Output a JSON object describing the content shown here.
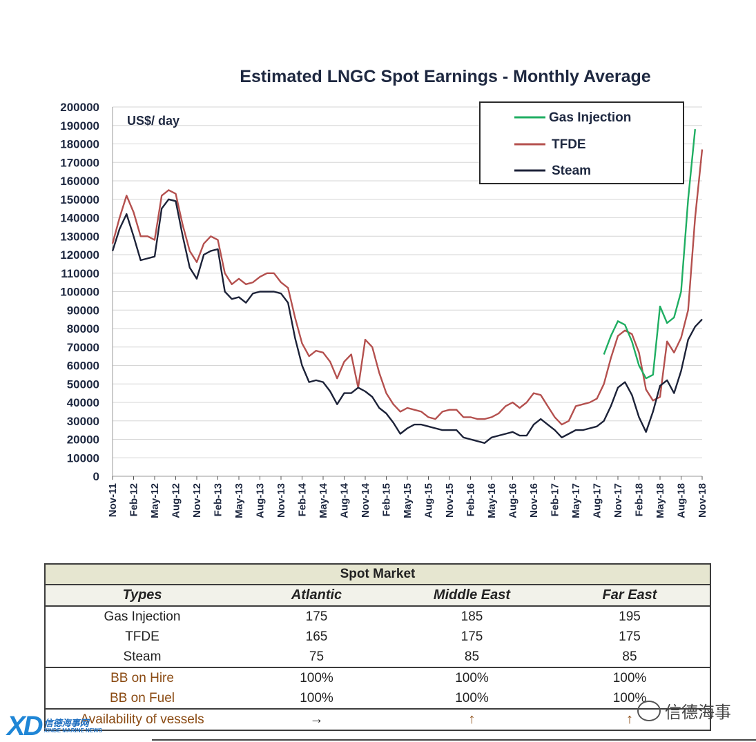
{
  "chart_data": {
    "type": "line",
    "title": "Estimated LNGC Spot Earnings - Monthly Average",
    "unit_label": "US$/ day",
    "ylim": [
      0,
      200000
    ],
    "yticks": [
      0,
      10000,
      20000,
      30000,
      40000,
      50000,
      60000,
      70000,
      80000,
      90000,
      100000,
      110000,
      120000,
      130000,
      140000,
      150000,
      160000,
      170000,
      180000,
      190000,
      200000
    ],
    "xtick_labels": [
      "Nov-11",
      "Feb-12",
      "May-12",
      "Aug-12",
      "Nov-12",
      "Feb-13",
      "May-13",
      "Aug-13",
      "Nov-13",
      "Feb-14",
      "May-14",
      "Aug-14",
      "Nov-14",
      "Feb-15",
      "May-15",
      "Aug-15",
      "Nov-15",
      "Feb-16",
      "May-16",
      "Aug-16",
      "Nov-16",
      "Feb-17",
      "May-17",
      "Aug-17",
      "Nov-17",
      "Feb-18",
      "May-18",
      "Aug-18",
      "Nov-18"
    ],
    "grid": true,
    "legend_position": "top-right",
    "series": [
      {
        "name": "Gas Injection",
        "color": "#1fae62",
        "start_index": 70,
        "values": [
          66000,
          76000,
          84000,
          82000,
          73000,
          60000,
          53000,
          55000,
          92000,
          83000,
          86000,
          100000,
          150000,
          188000
        ]
      },
      {
        "name": "TFDE",
        "color": "#b4504e",
        "start_index": 0,
        "values": [
          126000,
          140000,
          152000,
          143000,
          130000,
          130000,
          128000,
          152000,
          155000,
          153000,
          136000,
          122000,
          116000,
          126000,
          130000,
          128000,
          110000,
          104000,
          107000,
          104000,
          105000,
          108000,
          110000,
          110000,
          105000,
          102000,
          86000,
          72000,
          65000,
          68000,
          67000,
          62000,
          53000,
          62000,
          66000,
          48000,
          74000,
          70000,
          56000,
          45000,
          39000,
          35000,
          37000,
          36000,
          35000,
          32000,
          31000,
          35000,
          36000,
          36000,
          32000,
          32000,
          31000,
          31000,
          32000,
          34000,
          38000,
          40000,
          37000,
          40000,
          45000,
          44000,
          38000,
          32000,
          28000,
          30000,
          38000,
          39000,
          40000,
          42000,
          50000,
          64000,
          76000,
          79000,
          77000,
          67000,
          47000,
          41000,
          43000,
          73000,
          67000,
          75000,
          90000,
          140000,
          177000
        ]
      },
      {
        "name": "Steam",
        "color": "#1c2238",
        "start_index": 0,
        "values": [
          122000,
          134000,
          142000,
          130000,
          117000,
          118000,
          119000,
          145000,
          150000,
          149000,
          130000,
          113000,
          107000,
          120000,
          122000,
          123000,
          100000,
          96000,
          97000,
          94000,
          99000,
          100000,
          100000,
          100000,
          99000,
          94000,
          75000,
          60000,
          51000,
          52000,
          51000,
          46000,
          39000,
          45000,
          45000,
          48000,
          46000,
          43000,
          37000,
          34000,
          29000,
          23000,
          26000,
          28000,
          28000,
          27000,
          26000,
          25000,
          25000,
          25000,
          21000,
          20000,
          19000,
          18000,
          21000,
          22000,
          23000,
          24000,
          22000,
          22000,
          28000,
          31000,
          28000,
          25000,
          21000,
          23000,
          25000,
          25000,
          26000,
          27000,
          30000,
          38000,
          48000,
          51000,
          44000,
          32000,
          24000,
          35000,
          49000,
          52000,
          45000,
          57000,
          74000,
          81000,
          85000
        ]
      }
    ]
  },
  "table": {
    "banner": "Spot Market",
    "headers": [
      "Types",
      "Atlantic",
      "Middle East",
      "Far East"
    ],
    "rows": [
      [
        "Gas Injection",
        "175",
        "185",
        "195"
      ],
      [
        "TFDE",
        "165",
        "175",
        "175"
      ],
      [
        "Steam",
        "75",
        "85",
        "85"
      ],
      [
        "BB on Hire",
        "100%",
        "100%",
        "100%"
      ],
      [
        "BB on Fuel",
        "100%",
        "100%",
        "100%"
      ],
      [
        "Availability of vessels",
        "→",
        "↑",
        "↑"
      ]
    ]
  },
  "watermark": "信德海事",
  "brand": {
    "mark": "XD",
    "line1": "信德海事网",
    "line2": "XINDE MARINE NEWS"
  }
}
